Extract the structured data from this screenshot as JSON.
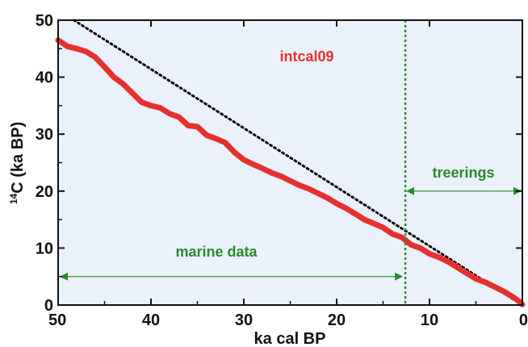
{
  "chart_data": {
    "type": "line",
    "xlabel": "ka cal BP",
    "ylabel_sup": "14",
    "ylabel_main": "C (ka BP)",
    "xlim": [
      50,
      0
    ],
    "ylim": [
      0,
      50
    ],
    "x_ticks": [
      50,
      40,
      30,
      20,
      10,
      0
    ],
    "y_ticks": [
      0,
      10,
      20,
      30,
      40,
      50
    ],
    "grid": false,
    "series": [
      {
        "name": "intcal09",
        "color": "#e53030",
        "x": [
          50,
          49,
          48,
          47,
          46,
          45,
          44,
          43,
          42,
          41,
          40,
          39,
          38,
          37,
          36,
          35,
          34,
          33,
          32,
          31,
          30,
          29,
          28,
          27,
          26,
          25,
          24,
          23,
          22,
          21,
          20,
          19,
          18,
          17,
          16,
          15,
          14,
          13,
          12.6,
          12,
          11,
          10,
          9,
          8,
          7,
          6,
          5,
          4,
          3,
          2,
          1,
          0.3,
          0
        ],
        "values": [
          46.5,
          45.4,
          45.0,
          44.5,
          43.5,
          41.8,
          40.0,
          38.8,
          37.2,
          35.6,
          35.0,
          34.6,
          33.6,
          33.0,
          31.5,
          31.3,
          29.8,
          29.2,
          28.5,
          26.8,
          25.5,
          24.7,
          24.0,
          23.2,
          22.6,
          21.8,
          21.0,
          20.4,
          19.6,
          18.8,
          17.8,
          17.0,
          16.0,
          15.0,
          14.3,
          13.6,
          12.5,
          11.9,
          11.4,
          10.6,
          10.0,
          9.0,
          8.4,
          7.6,
          6.6,
          5.6,
          4.6,
          4.0,
          3.2,
          2.4,
          1.4,
          0.6,
          0.1
        ]
      },
      {
        "name": "",
        "color": "#000000",
        "style": "dotted",
        "x": [
          48.3,
          0
        ],
        "values": [
          50,
          0
        ]
      }
    ],
    "vline": {
      "x": 12.6,
      "color": "#2a8a2a",
      "style": "dotted"
    },
    "annotations": {
      "intcal09": {
        "text": "intcal09",
        "color": "#e53030"
      },
      "treerings": {
        "text": "treerings",
        "color": "#2a8a2a",
        "from": 12.6,
        "to": 0,
        "y": 20
      },
      "marine": {
        "text": "marine data",
        "color": "#2a8a2a",
        "from": 50,
        "to": 12.6,
        "y": 5
      }
    },
    "plot_background": "#eaf1fb"
  }
}
